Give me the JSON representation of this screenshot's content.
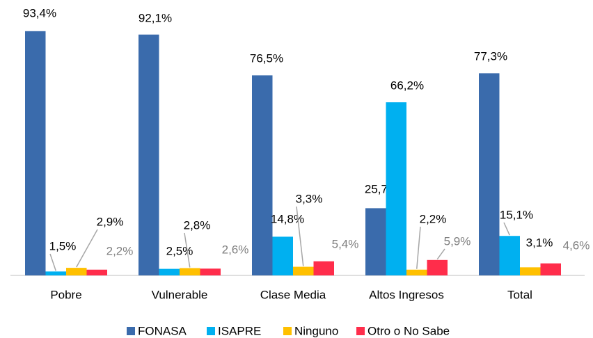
{
  "chart_data": {
    "type": "bar",
    "categories": [
      "Pobre",
      "Vulnerable",
      "Clase Media",
      "Altos Ingresos",
      "Total"
    ],
    "series": [
      {
        "name": "FONASA",
        "color": "#3a6bac",
        "values": [
          93.4,
          92.1,
          76.5,
          25.7,
          77.3
        ],
        "value_labels": [
          "93,4%",
          "92,1%",
          "76,5%",
          "25,7%",
          "77,3%"
        ]
      },
      {
        "name": "ISAPRE",
        "color": "#00b0f0",
        "values": [
          1.5,
          2.5,
          14.8,
          66.2,
          15.1
        ],
        "value_labels": [
          "1,5%",
          "2,5%",
          "14,8%",
          "66,2%",
          "15,1%"
        ]
      },
      {
        "name": "Ninguno",
        "color": "#ffc000",
        "values": [
          2.9,
          2.8,
          3.3,
          2.2,
          3.1
        ],
        "value_labels": [
          "2,9%",
          "2,8%",
          "3,3%",
          "2,2%",
          "3,1%"
        ]
      },
      {
        "name": "Otro o No Sabe",
        "color": "#ff2d4b",
        "values": [
          2.2,
          2.6,
          5.4,
          5.9,
          4.6
        ],
        "value_labels": [
          "2,2%",
          "2,6%",
          "5,4%",
          "5,9%",
          "4,6%"
        ]
      }
    ]
  }
}
